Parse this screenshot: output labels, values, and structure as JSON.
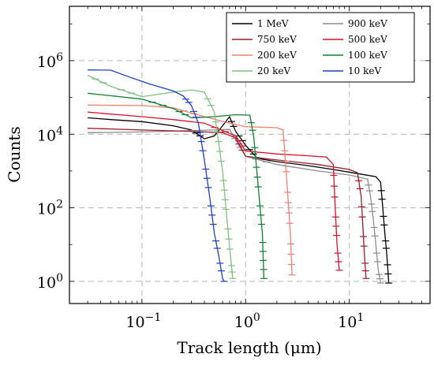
{
  "chart_data": {
    "type": "line",
    "title": "",
    "xlabel": "Track length (μm)",
    "ylabel": "Counts",
    "xscale": "log",
    "yscale": "log",
    "xlim": [
      0.02,
      60
    ],
    "ylim": [
      0.25,
      30000000
    ],
    "xticks": [
      {
        "value": 0.1,
        "base": "10",
        "exp": "−1"
      },
      {
        "value": 1,
        "base": "10",
        "exp": "0"
      },
      {
        "value": 10,
        "base": "10",
        "exp": "1"
      }
    ],
    "yticks": [
      {
        "value": 1,
        "base": "10",
        "exp": "0"
      },
      {
        "value": 100,
        "base": "10",
        "exp": "2"
      },
      {
        "value": 10000,
        "base": "10",
        "exp": "4"
      },
      {
        "value": 1000000,
        "base": "10",
        "exp": "6"
      }
    ],
    "grid": true,
    "legend_position": "top-right",
    "series": [
      {
        "name": "1 MeV",
        "color": "#000000",
        "points": [
          [
            0.03,
            28000
          ],
          [
            0.05,
            25000
          ],
          [
            0.1,
            22000
          ],
          [
            0.2,
            17000
          ],
          [
            0.3,
            13000
          ],
          [
            0.4,
            7500
          ],
          [
            0.5,
            9000
          ],
          [
            0.6,
            17000
          ],
          [
            0.7,
            30000
          ],
          [
            0.8,
            12000
          ],
          [
            1,
            5000
          ],
          [
            1.3,
            2200
          ],
          [
            2,
            1800
          ],
          [
            4,
            1400
          ],
          [
            7,
            1100
          ],
          [
            12,
            850
          ],
          [
            18,
            700
          ],
          [
            20,
            500
          ],
          [
            21,
            100
          ],
          [
            22,
            20
          ],
          [
            23,
            5
          ],
          [
            24,
            0.9
          ]
        ]
      },
      {
        "name": "900 keV",
        "color": "#8c8c8c",
        "points": [
          [
            0.03,
            11000
          ],
          [
            0.1,
            11500
          ],
          [
            0.3,
            12500
          ],
          [
            0.7,
            13500
          ],
          [
            1,
            2500
          ],
          [
            2,
            1500
          ],
          [
            5,
            1000
          ],
          [
            10,
            780
          ],
          [
            15,
            600
          ],
          [
            16,
            200
          ],
          [
            17,
            50
          ],
          [
            18,
            10
          ],
          [
            19,
            2
          ],
          [
            20,
            0.9
          ]
        ]
      },
      {
        "name": "750 keV",
        "color": "#a01828",
        "points": [
          [
            0.03,
            14500
          ],
          [
            0.1,
            13000
          ],
          [
            0.3,
            12000
          ],
          [
            0.6,
            11000
          ],
          [
            0.8,
            8000
          ],
          [
            1,
            2500
          ],
          [
            2,
            2000
          ],
          [
            5,
            1500
          ],
          [
            10,
            1100
          ],
          [
            12,
            900
          ],
          [
            13,
            200
          ],
          [
            13.5,
            30
          ],
          [
            14,
            5
          ],
          [
            14.5,
            1.2
          ]
        ]
      },
      {
        "name": "500 keV",
        "color": "#d8102a",
        "points": [
          [
            0.03,
            40000
          ],
          [
            0.1,
            30000
          ],
          [
            0.2,
            25000
          ],
          [
            0.4,
            20000
          ],
          [
            0.8,
            9000
          ],
          [
            1,
            3500
          ],
          [
            2,
            2900
          ],
          [
            4,
            2600
          ],
          [
            6,
            2400
          ],
          [
            7,
            1500
          ],
          [
            7.3,
            100
          ],
          [
            7.6,
            10
          ],
          [
            8,
            2
          ]
        ]
      },
      {
        "name": "200 keV",
        "color": "#f08070",
        "points": [
          [
            0.03,
            62000
          ],
          [
            0.1,
            60000
          ],
          [
            0.2,
            52000
          ],
          [
            0.4,
            30000
          ],
          [
            0.7,
            20000
          ],
          [
            1,
            16000
          ],
          [
            2,
            15000
          ],
          [
            2.3,
            13000
          ],
          [
            2.5,
            500
          ],
          [
            2.7,
            20
          ],
          [
            2.8,
            1.5
          ]
        ]
      },
      {
        "name": "100 keV",
        "color": "#108030",
        "points": [
          [
            0.03,
            130000
          ],
          [
            0.1,
            90000
          ],
          [
            0.2,
            50000
          ],
          [
            0.3,
            28000
          ],
          [
            0.5,
            30000
          ],
          [
            0.8,
            34000
          ],
          [
            1.1,
            33000
          ],
          [
            1.2,
            8000
          ],
          [
            1.35,
            200
          ],
          [
            1.45,
            20
          ],
          [
            1.5,
            1.2
          ]
        ]
      },
      {
        "name": "20 keV",
        "color": "#80c080",
        "points": [
          [
            0.03,
            400000
          ],
          [
            0.05,
            200000
          ],
          [
            0.1,
            105000
          ],
          [
            0.2,
            140000
          ],
          [
            0.3,
            160000
          ],
          [
            0.4,
            140000
          ],
          [
            0.5,
            40000
          ],
          [
            0.6,
            1000
          ],
          [
            0.66,
            50
          ],
          [
            0.72,
            4
          ],
          [
            0.75,
            1.2
          ]
        ]
      },
      {
        "name": "10 keV",
        "color": "#1f3fc8",
        "points": [
          [
            0.03,
            560000
          ],
          [
            0.05,
            550000
          ],
          [
            0.08,
            340000
          ],
          [
            0.12,
            230000
          ],
          [
            0.2,
            150000
          ],
          [
            0.25,
            110000
          ],
          [
            0.3,
            60000
          ],
          [
            0.35,
            20000
          ],
          [
            0.4,
            2000
          ],
          [
            0.45,
            200
          ],
          [
            0.5,
            20
          ],
          [
            0.55,
            5
          ],
          [
            0.6,
            1.2
          ],
          [
            0.62,
            1
          ]
        ]
      }
    ]
  }
}
